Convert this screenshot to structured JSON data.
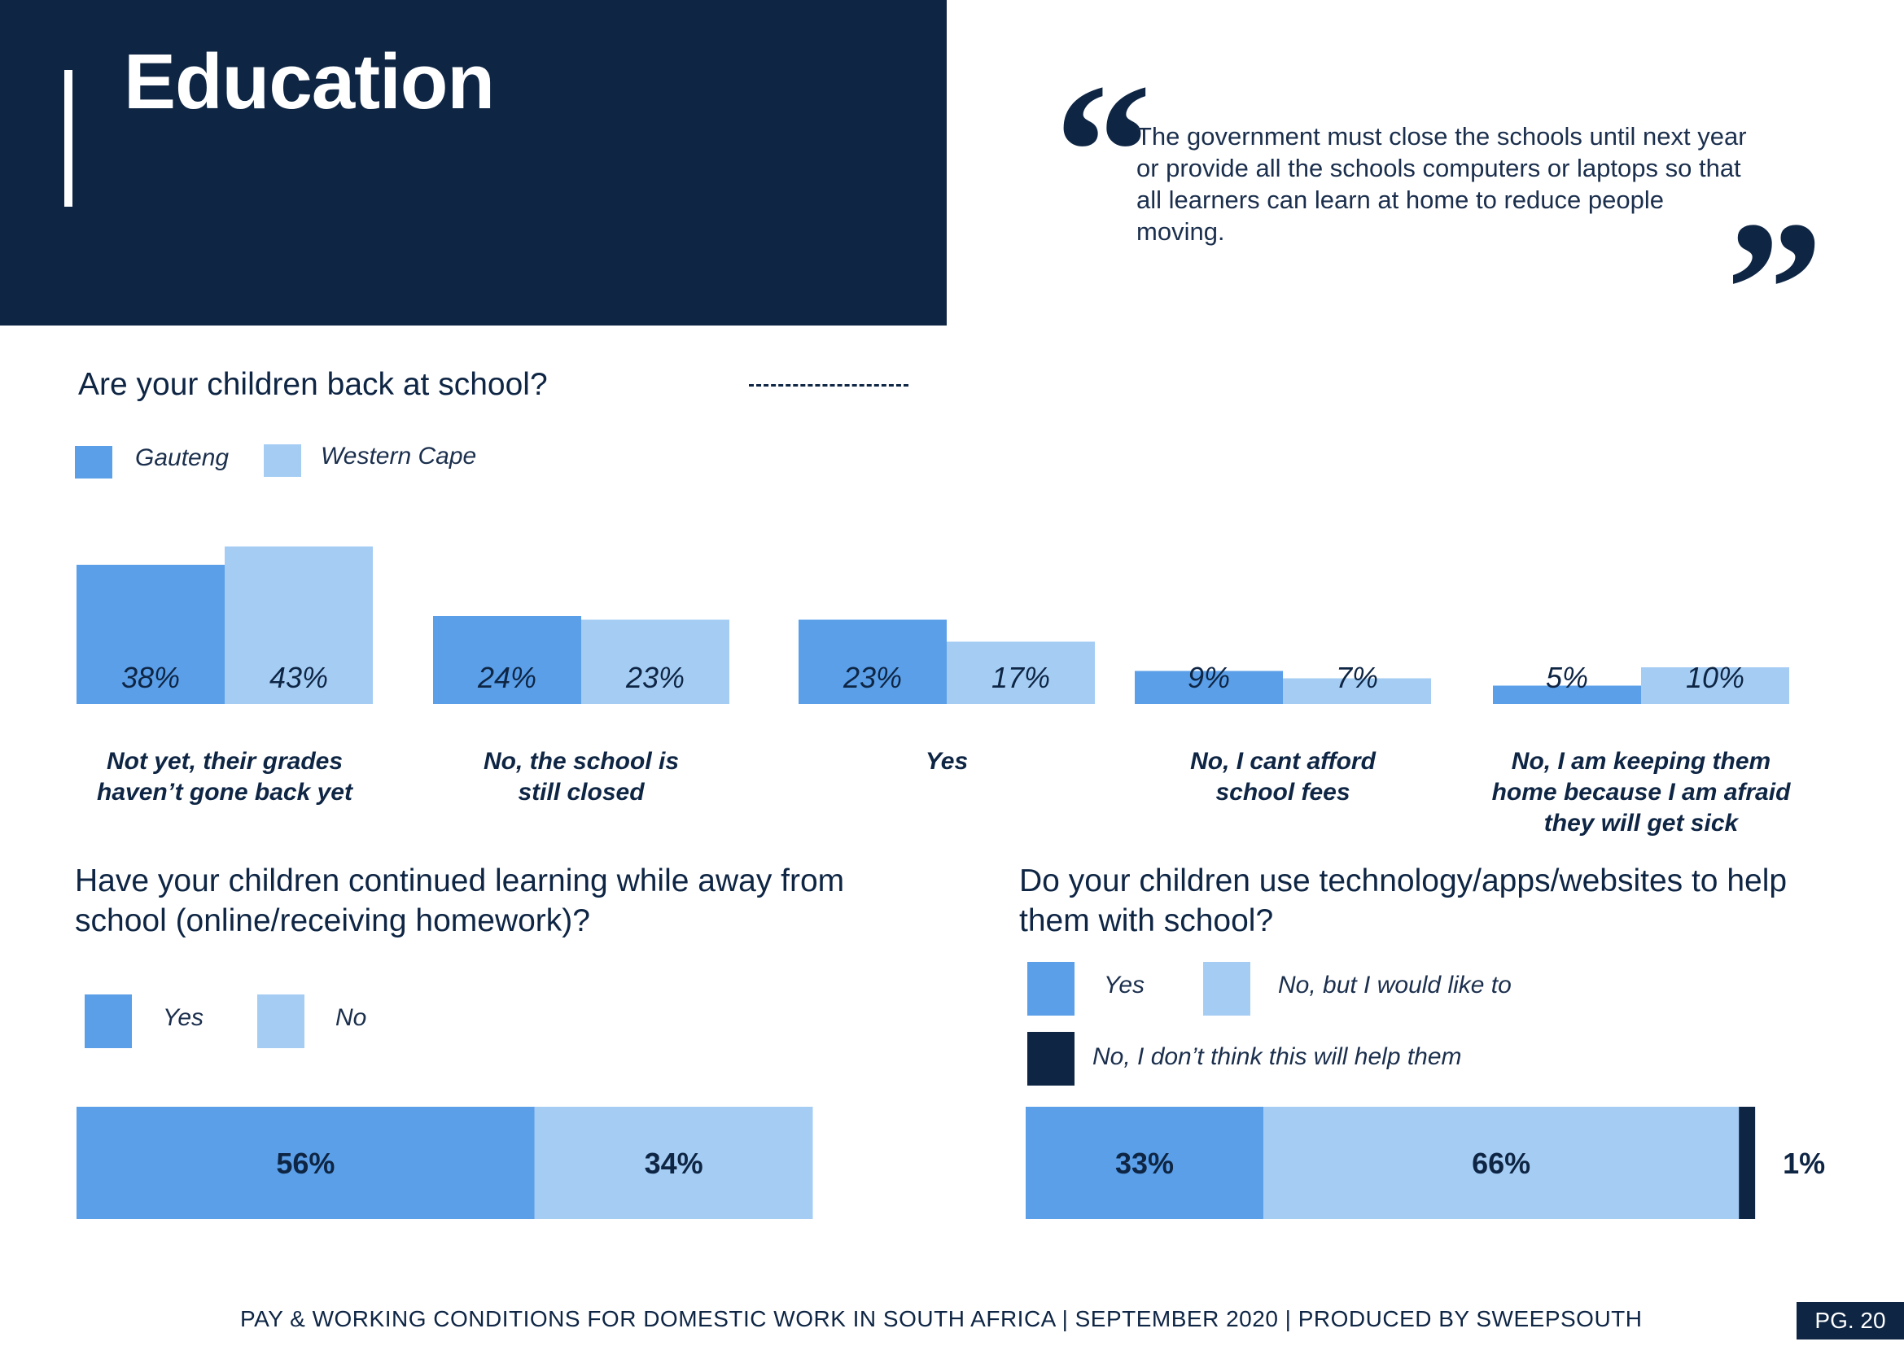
{
  "header": {
    "title": "Education"
  },
  "quote": {
    "open_mark": "“",
    "close_mark": "”",
    "text": "The government must close the schools until next year or provide all the schools computers or laptops so that all learners can learn at home to reduce people moving."
  },
  "colors": {
    "navy": "#0e2544",
    "mid_blue": "#5a9fe8",
    "light_blue": "#a5cdf4",
    "dark_navy": "#0e2544"
  },
  "chart_data": [
    {
      "type": "bar",
      "title": "Are your children back at school?",
      "categories": [
        "Not yet, their grades haven’t gone back yet",
        "No, the school is still closed",
        "Yes",
        "No, I cant afford school fees",
        "No, I am keeping them home because I am afraid they will get sick"
      ],
      "category_lines": [
        [
          "Not yet, their grades",
          "haven’t gone back yet"
        ],
        [
          "No, the school is",
          "still closed"
        ],
        [
          "Yes"
        ],
        [
          "No, I cant afford",
          "school fees"
        ],
        [
          "No, I am keeping them",
          "home because I am afraid",
          "they will get sick"
        ]
      ],
      "series": [
        {
          "name": "Gauteng",
          "values": [
            38,
            24,
            23,
            9,
            5
          ],
          "labels": [
            "38%",
            "24%",
            "23%",
            "9%",
            "5%"
          ],
          "color": "#5a9fe8"
        },
        {
          "name": "Western Cape",
          "values": [
            43,
            23,
            17,
            7,
            10
          ],
          "labels": [
            "43%",
            "23%",
            "17%",
            "7%",
            "10%"
          ],
          "color": "#a5cdf4"
        }
      ],
      "unit": "%",
      "legend": "top-left"
    },
    {
      "type": "bar",
      "subtype": "stacked-horizontal",
      "title": "Have your children continued learning while away from school (online/receiving homework)?",
      "series": [
        {
          "name": "Yes",
          "value": 56,
          "label": "56%",
          "color": "#5a9fe8"
        },
        {
          "name": "No",
          "value": 34,
          "label": "34%",
          "color": "#a5cdf4"
        }
      ],
      "unit": "%",
      "legend": "top-left"
    },
    {
      "type": "bar",
      "subtype": "stacked-horizontal",
      "title": "Do your children use technology/apps/websites to help them with school?",
      "series": [
        {
          "name": "Yes",
          "value": 33,
          "label": "33%",
          "color": "#5a9fe8"
        },
        {
          "name": "No, but I would like to",
          "value": 66,
          "label": "66%",
          "color": "#a5cdf4"
        },
        {
          "name": "No, I don’t think this will help them",
          "value": 1,
          "label": "1%",
          "color": "#0e2544"
        }
      ],
      "unit": "%",
      "legend": "top-left"
    }
  ],
  "footer": {
    "text": "PAY & WORKING CONDITIONS FOR DOMESTIC WORK IN SOUTH AFRICA  |  SEPTEMBER 2020 | PRODUCED BY SWEEPSOUTH",
    "page": "PG. 20"
  }
}
